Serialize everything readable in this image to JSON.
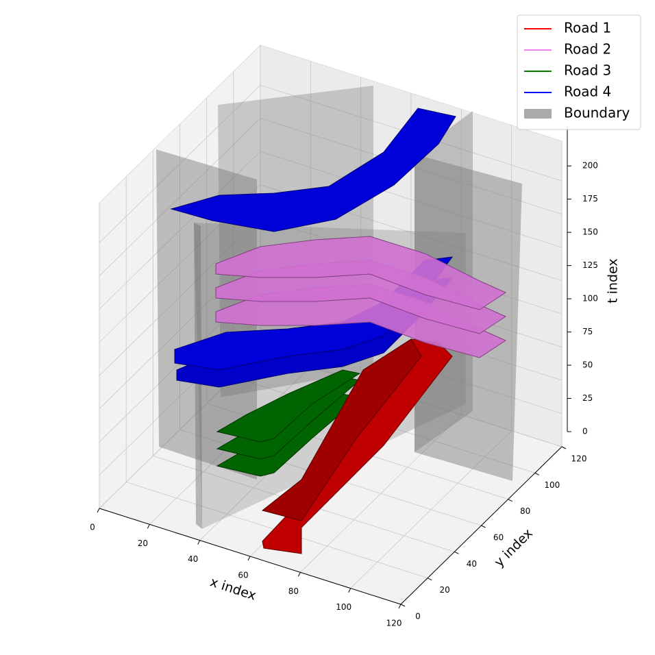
{
  "chart_data": {
    "type": "voxel3d",
    "xlabel": "x index",
    "ylabel": "y index",
    "zlabel": "t index",
    "xlim": [
      0,
      120
    ],
    "ylim": [
      0,
      120
    ],
    "zlim": [
      0,
      230
    ],
    "xticks": [
      0,
      20,
      40,
      60,
      80,
      100,
      120
    ],
    "yticks": [
      0,
      20,
      40,
      60,
      80,
      100,
      120
    ],
    "zticks": [
      0,
      25,
      50,
      75,
      100,
      125,
      150,
      175,
      200
    ],
    "grid": true,
    "legend": "upper right",
    "series": [
      {
        "name": "Road 1",
        "color": "#ff0000"
      },
      {
        "name": "Road 2",
        "color": "#ee82ee"
      },
      {
        "name": "Road 3",
        "color": "#008000"
      },
      {
        "name": "Road 4",
        "color": "#0000ff"
      },
      {
        "name": "Boundary",
        "color": "#aaaaaa"
      }
    ]
  }
}
